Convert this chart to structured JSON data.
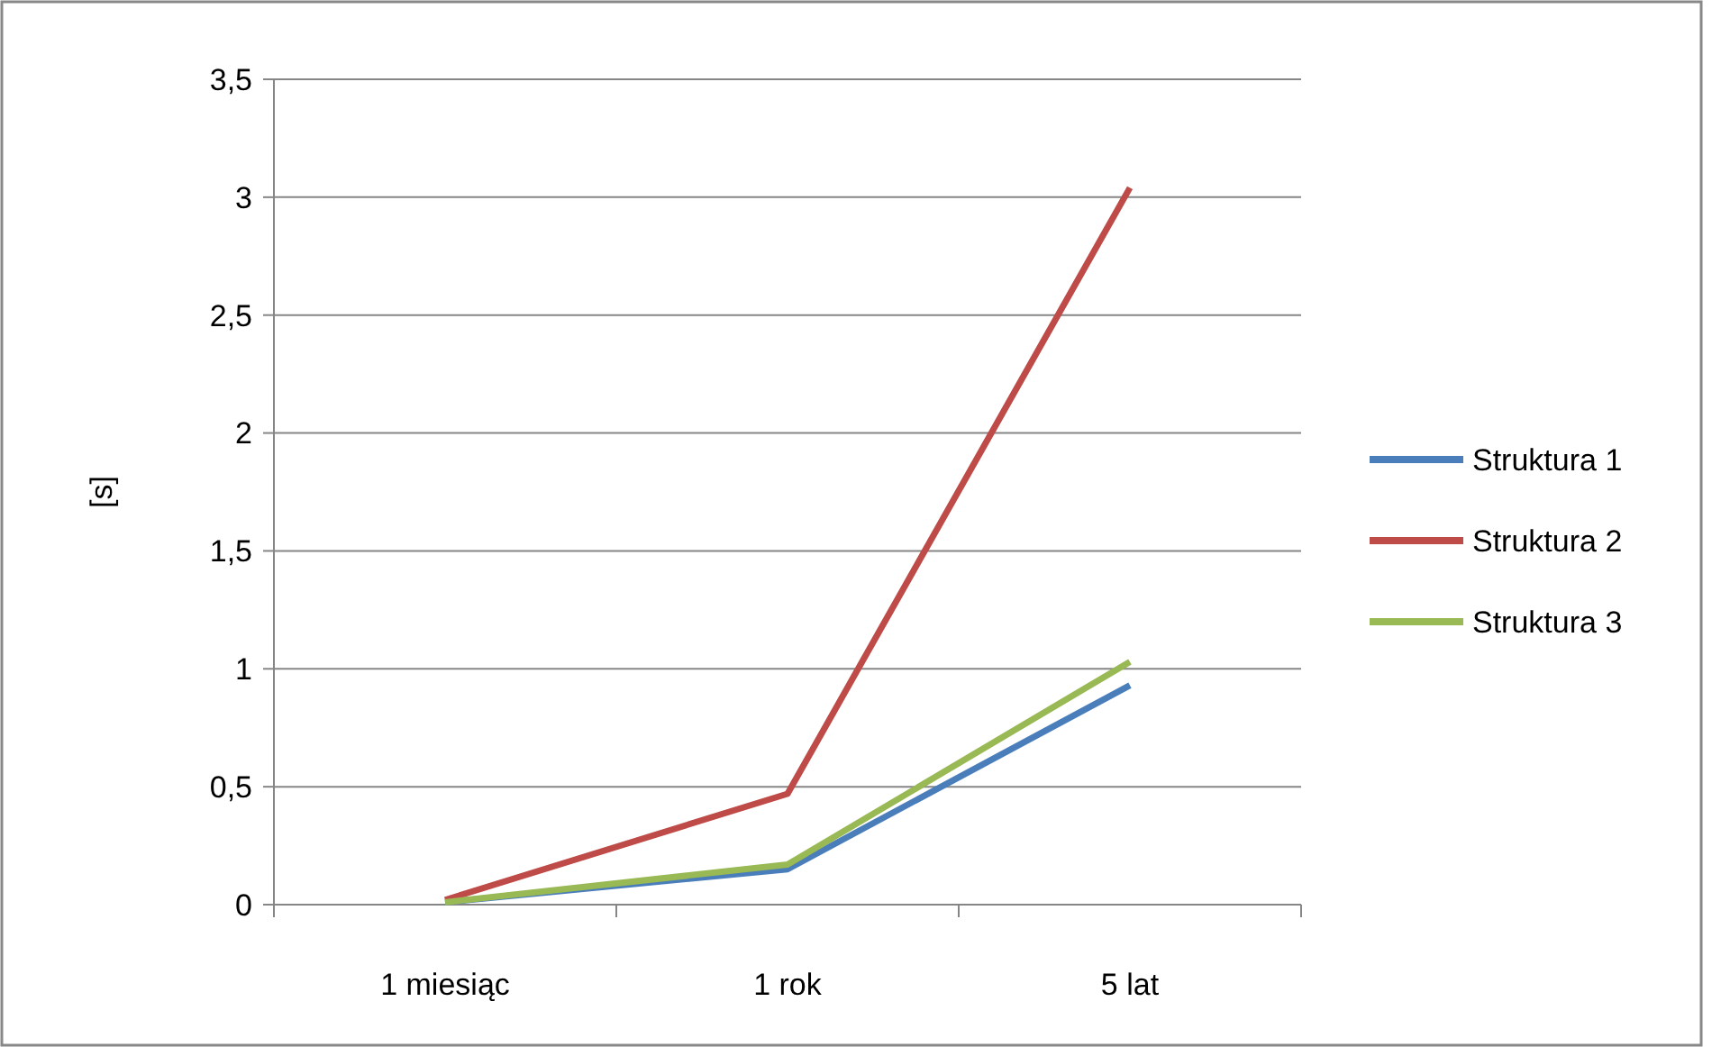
{
  "chart_data": {
    "type": "line",
    "ylabel": "[s]",
    "categories": [
      "1 miesiąc",
      "1 rok",
      "5 lat"
    ],
    "series": [
      {
        "name": "Struktura 1",
        "color": "#4a7ebb",
        "values": [
          0.01,
          0.15,
          0.93
        ]
      },
      {
        "name": "Struktura 2",
        "color": "#be4b48",
        "values": [
          0.02,
          0.47,
          3.04
        ]
      },
      {
        "name": "Struktura 3",
        "color": "#98b954",
        "values": [
          0.01,
          0.17,
          1.03
        ]
      }
    ],
    "ylim": [
      0,
      3.5
    ],
    "yticks": [
      {
        "value": 0,
        "label": "0"
      },
      {
        "value": 0.5,
        "label": "0,5"
      },
      {
        "value": 1,
        "label": "1"
      },
      {
        "value": 1.5,
        "label": "1,5"
      },
      {
        "value": 2,
        "label": "2"
      },
      {
        "value": 2.5,
        "label": "2,5"
      },
      {
        "value": 3,
        "label": "3"
      },
      {
        "value": 3.5,
        "label": "3,5"
      }
    ],
    "grid": "y",
    "legend": "right",
    "marker": "none",
    "line_style": "solid"
  }
}
